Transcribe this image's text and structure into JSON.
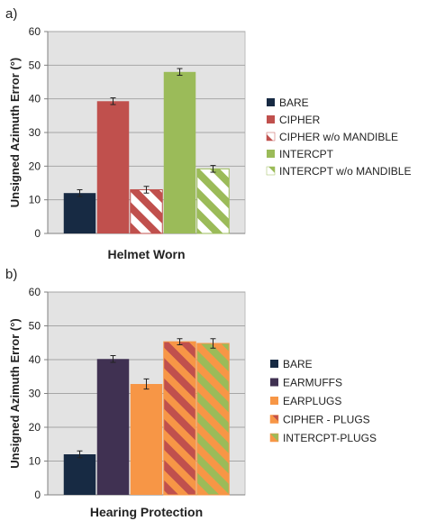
{
  "chart_data": [
    {
      "panel": "a)",
      "type": "bar",
      "xlabel": "Helmet Worn",
      "ylabel": "Unsigned Azimuth Error (°)",
      "ylim": [
        0,
        60
      ],
      "yticks": [
        "0",
        "10",
        "20",
        "30",
        "40",
        "50",
        "60"
      ],
      "grid": true,
      "legend_position": "right",
      "series": [
        {
          "name": "BARE",
          "value": 12,
          "error": 1.0,
          "color": "#172a43",
          "pattern": "solid"
        },
        {
          "name": "CIPHER",
          "value": 39.3,
          "error": 1.0,
          "color": "#c0504d",
          "pattern": "solid"
        },
        {
          "name": "CIPHER w/o MANDIBLE",
          "value": 13,
          "error": 1.0,
          "color": "#c0504d",
          "pattern": "striped"
        },
        {
          "name": "INTERCPT",
          "value": 48,
          "error": 1.0,
          "color": "#9bbb59",
          "pattern": "solid"
        },
        {
          "name": "INTERCPT w/o MANDIBLE",
          "value": 19.2,
          "error": 1.0,
          "color": "#9bbb59",
          "pattern": "striped"
        }
      ]
    },
    {
      "panel": "b)",
      "type": "bar",
      "xlabel": "Hearing Protection",
      "ylabel": "Unsigned Azimuth Error (°)",
      "ylim": [
        0,
        60
      ],
      "yticks": [
        "0",
        "10",
        "20",
        "30",
        "40",
        "50",
        "60"
      ],
      "grid": true,
      "legend_position": "right",
      "series": [
        {
          "name": "BARE",
          "value": 12,
          "error": 1.0,
          "color": "#172a43",
          "pattern": "solid"
        },
        {
          "name": "EARMUFFS",
          "value": 40.2,
          "error": 1.0,
          "color": "#403152",
          "pattern": "solid"
        },
        {
          "name": "EARPLUGS",
          "value": 32.8,
          "error": 1.5,
          "color": "#f79646",
          "pattern": "solid"
        },
        {
          "name": "CIPHER - PLUGS",
          "value": 45.3,
          "error": 0.9,
          "color": "#f79646",
          "pattern": "striped",
          "stripe_color": "#c0504d"
        },
        {
          "name": "INTERCPT-PLUGS",
          "value": 44.8,
          "error": 1.4,
          "color": "#f79646",
          "pattern": "striped",
          "stripe_color": "#9bbb59"
        }
      ]
    }
  ]
}
